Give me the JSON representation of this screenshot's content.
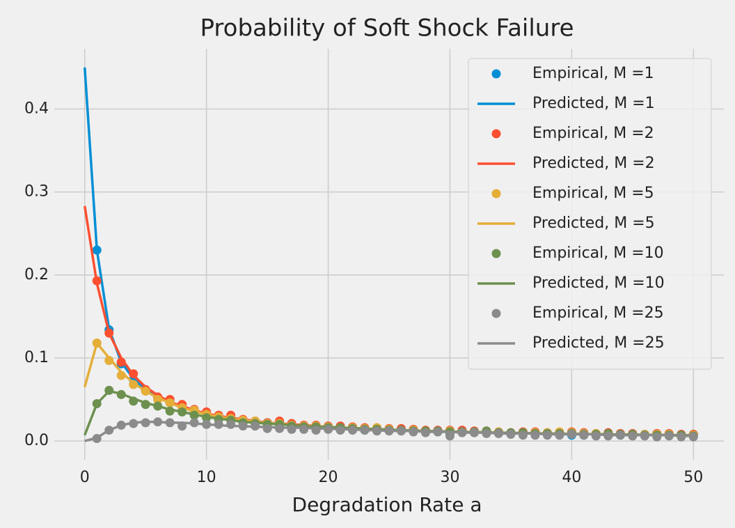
{
  "chart_data": {
    "type": "line",
    "title": "Probability of Soft Shock Failure",
    "xlabel": "Degradation Rate a",
    "x": [
      0,
      1,
      2,
      3,
      4,
      5,
      6,
      7,
      8,
      9,
      10,
      11,
      12,
      13,
      14,
      15,
      16,
      17,
      18,
      19,
      20,
      21,
      22,
      23,
      24,
      25,
      26,
      27,
      28,
      29,
      30,
      31,
      32,
      33,
      34,
      35,
      36,
      37,
      38,
      39,
      40,
      41,
      42,
      43,
      44,
      45,
      46,
      47,
      48,
      49,
      50
    ],
    "xlim": [
      -2.5,
      52.5
    ],
    "xticks": [
      0,
      10,
      20,
      30,
      40,
      50
    ],
    "ylim": [
      -0.0226,
      0.4726
    ],
    "yticks": [
      {
        "value": 0,
        "label": "0.0"
      },
      0.1,
      0.2,
      0.3,
      0.4
    ],
    "grid": true,
    "legend": "upper right",
    "series": [
      {
        "name": "Empirical, M =1",
        "mark": "scatter",
        "color": "#008fd5",
        "values": [
          null,
          0.23,
          0.134,
          0.093,
          0.074,
          0.061,
          0.052,
          0.046,
          0.04,
          0.036,
          0.032,
          0.03,
          0.029,
          0.025,
          0.024,
          0.022,
          0.02,
          0.021,
          0.018,
          0.018,
          0.017,
          0.015,
          0.016,
          0.013,
          0.014,
          0.013,
          0.013,
          0.012,
          0.012,
          0.011,
          0.009,
          0.011,
          0.01,
          0.011,
          0.01,
          0.009,
          0.01,
          0.009,
          0.009,
          0.009,
          0.007,
          0.007,
          0.008,
          0.008,
          0.007,
          0.007,
          0.008,
          0.007,
          0.007,
          0.008,
          0.008
        ]
      },
      {
        "name": "Predicted, M =1",
        "mark": "line",
        "color": "#008fd5",
        "values": [
          0.45,
          0.23,
          0.135,
          0.095,
          0.075,
          0.062,
          0.053,
          0.046,
          0.041,
          0.036,
          0.033,
          0.03,
          0.028,
          0.026,
          0.024,
          0.022,
          0.021,
          0.02,
          0.019,
          0.018,
          0.017,
          0.016,
          0.0155,
          0.015,
          0.014,
          0.0136,
          0.013,
          0.0126,
          0.012,
          0.0117,
          0.0113,
          0.011,
          0.0106,
          0.0103,
          0.01,
          0.0097,
          0.0094,
          0.0092,
          0.0089,
          0.0087,
          0.0085,
          0.0083,
          0.0081,
          0.0079,
          0.0077,
          0.0076,
          0.0074,
          0.0072,
          0.0071,
          0.0069,
          0.0068
        ]
      },
      {
        "name": "Empirical, M =2",
        "mark": "scatter",
        "color": "#fc4f30",
        "values": [
          null,
          0.193,
          0.13,
          0.095,
          0.081,
          0.062,
          0.053,
          0.05,
          0.044,
          0.038,
          0.035,
          0.031,
          0.031,
          0.026,
          0.024,
          0.022,
          0.024,
          0.021,
          0.019,
          0.019,
          0.018,
          0.018,
          0.017,
          0.016,
          0.016,
          0.015,
          0.015,
          0.014,
          0.013,
          0.013,
          0.013,
          0.013,
          0.012,
          0.012,
          0.011,
          0.01,
          0.011,
          0.011,
          0.01,
          0.01,
          0.011,
          0.01,
          0.009,
          0.01,
          0.009,
          0.009,
          0.008,
          0.009,
          0.009,
          0.008,
          0.008
        ]
      },
      {
        "name": "Predicted, M =2",
        "mark": "line",
        "color": "#fc4f30",
        "values": [
          0.283,
          0.19,
          0.13,
          0.1,
          0.079,
          0.065,
          0.055,
          0.047,
          0.042,
          0.037,
          0.033,
          0.03,
          0.028,
          0.026,
          0.024,
          0.022,
          0.021,
          0.02,
          0.019,
          0.018,
          0.017,
          0.016,
          0.0155,
          0.015,
          0.014,
          0.0136,
          0.013,
          0.0126,
          0.012,
          0.0117,
          0.0113,
          0.011,
          0.0106,
          0.0103,
          0.01,
          0.0097,
          0.0094,
          0.0092,
          0.0089,
          0.0087,
          0.0085,
          0.0083,
          0.0081,
          0.0079,
          0.0077,
          0.0076,
          0.0074,
          0.0072,
          0.0071,
          0.0069,
          0.0068
        ]
      },
      {
        "name": "Empirical, M =5",
        "mark": "scatter",
        "color": "#e5ae38",
        "values": [
          null,
          0.118,
          0.097,
          0.079,
          0.068,
          0.06,
          0.05,
          0.046,
          0.04,
          0.037,
          0.032,
          0.029,
          0.027,
          0.025,
          0.024,
          0.021,
          0.021,
          0.019,
          0.018,
          0.018,
          0.017,
          0.016,
          0.016,
          0.015,
          0.016,
          0.014,
          0.013,
          0.013,
          0.012,
          0.012,
          0.012,
          0.011,
          0.011,
          0.01,
          0.011,
          0.009,
          0.01,
          0.01,
          0.01,
          0.011,
          0.01,
          0.009,
          0.009,
          0.008,
          0.008,
          0.008,
          0.008,
          0.008,
          0.008,
          0.007,
          0.007
        ]
      },
      {
        "name": "Predicted, M =5",
        "mark": "line",
        "color": "#e5ae38",
        "values": [
          0.065,
          0.118,
          0.1,
          0.083,
          0.07,
          0.06,
          0.052,
          0.046,
          0.04,
          0.036,
          0.032,
          0.029,
          0.027,
          0.025,
          0.023,
          0.022,
          0.021,
          0.019,
          0.018,
          0.018,
          0.017,
          0.016,
          0.0155,
          0.015,
          0.014,
          0.0136,
          0.013,
          0.0126,
          0.012,
          0.0117,
          0.0113,
          0.011,
          0.0106,
          0.0103,
          0.01,
          0.0097,
          0.0094,
          0.0092,
          0.0089,
          0.0087,
          0.0085,
          0.0083,
          0.0081,
          0.0079,
          0.0077,
          0.0076,
          0.0074,
          0.0072,
          0.0071,
          0.0069,
          0.0068
        ]
      },
      {
        "name": "Empirical, M =10",
        "mark": "scatter",
        "color": "#6d904f",
        "values": [
          null,
          0.045,
          0.061,
          0.056,
          0.048,
          0.044,
          0.042,
          0.036,
          0.035,
          0.031,
          0.028,
          0.026,
          0.025,
          0.022,
          0.021,
          0.02,
          0.02,
          0.018,
          0.017,
          0.017,
          0.016,
          0.016,
          0.015,
          0.014,
          0.014,
          0.013,
          0.013,
          0.012,
          0.012,
          0.012,
          0.011,
          0.011,
          0.011,
          0.012,
          0.01,
          0.01,
          0.01,
          0.009,
          0.009,
          0.009,
          0.009,
          0.008,
          0.008,
          0.009,
          0.008,
          0.008,
          0.007,
          0.007,
          0.007,
          0.007,
          0.006
        ]
      },
      {
        "name": "Predicted, M =10",
        "mark": "line",
        "color": "#6d904f",
        "values": [
          0.007,
          0.045,
          0.06,
          0.057,
          0.051,
          0.046,
          0.042,
          0.038,
          0.035,
          0.032,
          0.029,
          0.027,
          0.025,
          0.023,
          0.022,
          0.021,
          0.02,
          0.019,
          0.018,
          0.017,
          0.017,
          0.016,
          0.0155,
          0.015,
          0.014,
          0.0136,
          0.013,
          0.0126,
          0.012,
          0.0117,
          0.0113,
          0.011,
          0.0106,
          0.0103,
          0.01,
          0.0097,
          0.0094,
          0.0092,
          0.0089,
          0.0087,
          0.0085,
          0.0083,
          0.0081,
          0.0079,
          0.0077,
          0.0076,
          0.0074,
          0.0072,
          0.0071,
          0.0069,
          0.0068
        ]
      },
      {
        "name": "Empirical, M =25",
        "mark": "scatter",
        "color": "#8b8b8b",
        "values": [
          null,
          0.003,
          0.013,
          0.019,
          0.021,
          0.022,
          0.023,
          0.022,
          0.018,
          0.022,
          0.02,
          0.02,
          0.02,
          0.018,
          0.018,
          0.015,
          0.015,
          0.014,
          0.014,
          0.013,
          0.014,
          0.013,
          0.013,
          0.013,
          0.012,
          0.012,
          0.012,
          0.011,
          0.01,
          0.011,
          0.006,
          0.01,
          0.01,
          0.009,
          0.009,
          0.008,
          0.007,
          0.007,
          0.007,
          0.007,
          0.008,
          0.007,
          0.006,
          0.006,
          0.007,
          0.006,
          0.006,
          0.005,
          0.006,
          0.005,
          0.005
        ]
      },
      {
        "name": "Predicted, M =25",
        "mark": "line",
        "color": "#8b8b8b",
        "values": [
          0.0,
          0.004,
          0.013,
          0.019,
          0.022,
          0.023,
          0.023,
          0.022,
          0.022,
          0.021,
          0.02,
          0.019,
          0.018,
          0.018,
          0.017,
          0.017,
          0.016,
          0.016,
          0.016,
          0.015,
          0.015,
          0.014,
          0.014,
          0.013,
          0.013,
          0.012,
          0.012,
          0.012,
          0.011,
          0.011,
          0.011,
          0.01,
          0.01,
          0.01,
          0.009,
          0.009,
          0.009,
          0.009,
          0.008,
          0.008,
          0.008,
          0.008,
          0.008,
          0.007,
          0.007,
          0.007,
          0.007,
          0.007,
          0.007,
          0.006,
          0.006
        ]
      }
    ]
  }
}
